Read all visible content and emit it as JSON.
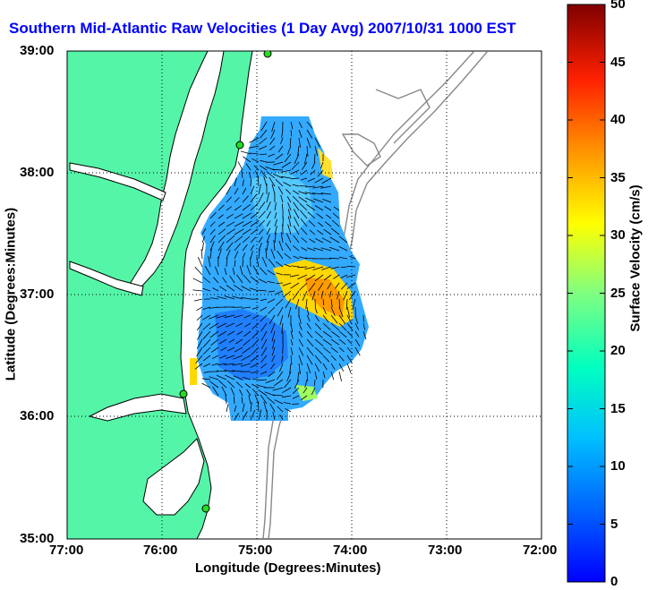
{
  "title": "Southern Mid-Atlantic Raw Velocities (1 Day Avg) 2007/10/31 1000 EST",
  "map": {
    "xlabel": "Longitude (Degrees:Minutes)",
    "ylabel": "Latitude (Degrees:Minutes)",
    "x_ticks": [
      "77:00",
      "76:00",
      "75:00",
      "74:00",
      "73:00",
      "72:00"
    ],
    "y_ticks": [
      "39:00",
      "38:00",
      "37:00",
      "36:00",
      "35:00"
    ],
    "land_color": "#55f5a8",
    "coast_color": "#000000",
    "bathymetry_color": "#888888",
    "grid": "dotted"
  },
  "colorbar": {
    "label": "Surface Velocity (cm/s)",
    "ticks": [
      "50",
      "45",
      "40",
      "35",
      "30",
      "25",
      "20",
      "15",
      "10",
      "5",
      "0"
    ],
    "range": [
      0,
      50
    ],
    "colormap": "jet"
  }
}
